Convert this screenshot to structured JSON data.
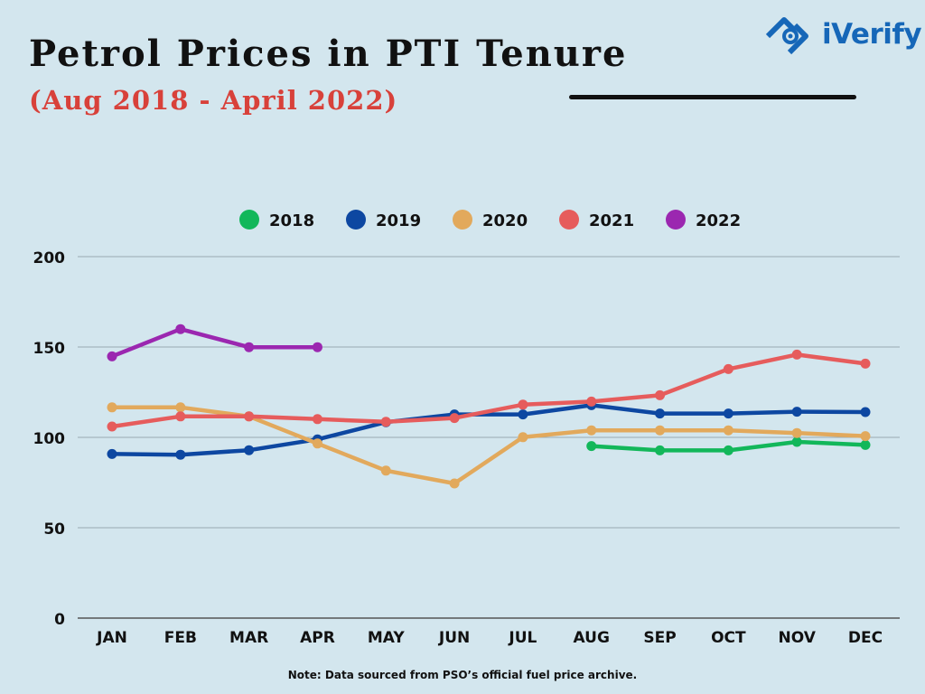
{
  "header": {
    "title": "Petrol Prices in PTI Tenure",
    "subtitle": "(Aug 2018 - April 2022)",
    "logo_text": "iVerify"
  },
  "note": "Note: Data sourced from PSO’s official fuel price archive.",
  "chart_data": {
    "type": "line",
    "title": "Petrol Prices in PTI Tenure",
    "subtitle": "(Aug 2018 - April 2022)",
    "xlabel": "",
    "ylabel": "",
    "categories": [
      "JAN",
      "FEB",
      "MAR",
      "APR",
      "MAY",
      "JUN",
      "JUL",
      "AUG",
      "SEP",
      "OCT",
      "NOV",
      "DEC"
    ],
    "ylim": [
      0,
      200
    ],
    "yticks": [
      0,
      50,
      100,
      150,
      200
    ],
    "grid": true,
    "legend": "top",
    "series": [
      {
        "name": "2018",
        "color": "#12b75a",
        "values": [
          null,
          null,
          null,
          null,
          null,
          null,
          null,
          95.2,
          92.8,
          92.8,
          97.5,
          95.8
        ]
      },
      {
        "name": "2019",
        "color": "#0d47a1",
        "values": [
          90.8,
          90.4,
          92.9,
          98.9,
          108.4,
          112.7,
          112.7,
          117.8,
          113.2,
          113.2,
          114.2,
          114.0
        ]
      },
      {
        "name": "2020",
        "color": "#e2a95c",
        "values": [
          116.6,
          116.6,
          111.6,
          96.6,
          81.6,
          74.5,
          100.1,
          103.9,
          103.9,
          103.9,
          102.4,
          100.7
        ]
      },
      {
        "name": "2021",
        "color": "#e65c5c",
        "values": [
          106.0,
          111.6,
          111.6,
          110.1,
          108.6,
          110.7,
          118.1,
          119.8,
          123.3,
          137.8,
          145.8,
          140.8
        ]
      },
      {
        "name": "2022",
        "color": "#9b27b0",
        "values": [
          144.8,
          159.9,
          149.9,
          149.9,
          null,
          null,
          null,
          null,
          null,
          null,
          null,
          null
        ]
      }
    ]
  }
}
